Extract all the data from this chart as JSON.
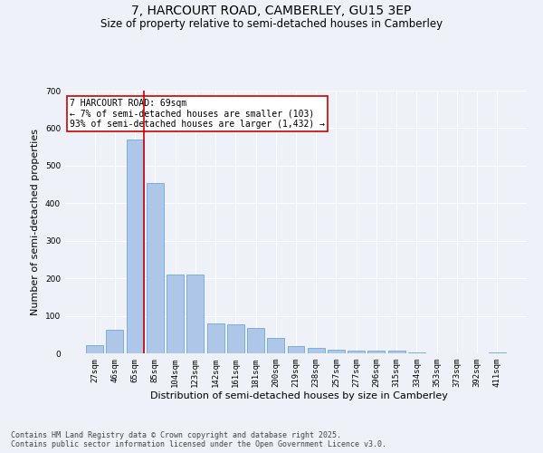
{
  "title": "7, HARCOURT ROAD, CAMBERLEY, GU15 3EP",
  "subtitle": "Size of property relative to semi-detached houses in Camberley",
  "xlabel": "Distribution of semi-detached houses by size in Camberley",
  "ylabel": "Number of semi-detached properties",
  "categories": [
    "27sqm",
    "46sqm",
    "65sqm",
    "85sqm",
    "104sqm",
    "123sqm",
    "142sqm",
    "161sqm",
    "181sqm",
    "200sqm",
    "219sqm",
    "238sqm",
    "257sqm",
    "277sqm",
    "296sqm",
    "315sqm",
    "334sqm",
    "353sqm",
    "373sqm",
    "392sqm",
    "411sqm"
  ],
  "values": [
    22,
    62,
    570,
    455,
    210,
    210,
    80,
    78,
    67,
    42,
    20,
    15,
    10,
    8,
    8,
    7,
    2,
    1,
    0,
    0,
    3
  ],
  "bar_color": "#aec6e8",
  "bar_edge_color": "#5b9bd5",
  "vline_color": "#cc0000",
  "annotation_text": "7 HARCOURT ROAD: 69sqm\n← 7% of semi-detached houses are smaller (103)\n93% of semi-detached houses are larger (1,432) →",
  "annotation_box_color": "#cc0000",
  "ylim": [
    0,
    700
  ],
  "yticks": [
    0,
    100,
    200,
    300,
    400,
    500,
    600,
    700
  ],
  "footer": "Contains HM Land Registry data © Crown copyright and database right 2025.\nContains public sector information licensed under the Open Government Licence v3.0.",
  "bg_color": "#eef2f8",
  "plot_bg_color": "#eef2f8",
  "grid_color": "#ffffff",
  "title_fontsize": 10,
  "subtitle_fontsize": 8.5,
  "axis_label_fontsize": 8,
  "tick_fontsize": 6.5,
  "footer_fontsize": 6,
  "annot_fontsize": 7
}
